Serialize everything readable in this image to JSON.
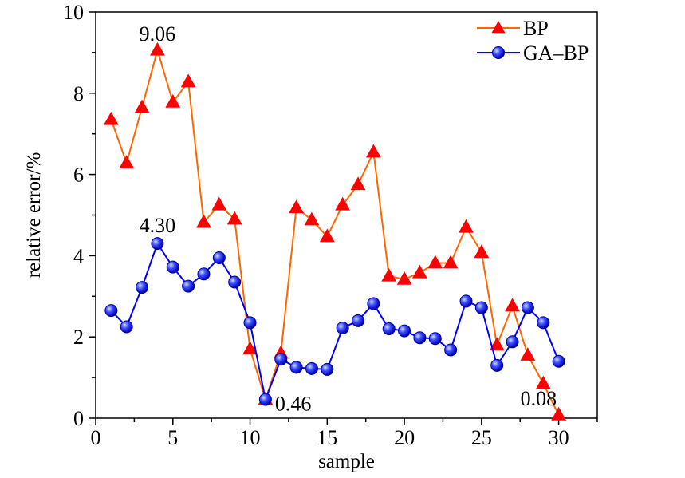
{
  "chart_data": {
    "type": "line",
    "title": "",
    "xlabel": "sample",
    "ylabel": "relative error/%",
    "xlim": [
      0,
      32.5
    ],
    "ylim": [
      0,
      10
    ],
    "x_ticks": [
      0,
      5,
      10,
      15,
      20,
      25,
      30
    ],
    "y_ticks": [
      0,
      2,
      4,
      6,
      8,
      10
    ],
    "grid": false,
    "legend_position": "top-right",
    "x": [
      1,
      2,
      3,
      4,
      5,
      6,
      7,
      8,
      9,
      10,
      11,
      12,
      13,
      14,
      15,
      16,
      17,
      18,
      19,
      20,
      21,
      22,
      23,
      24,
      25,
      26,
      27,
      28,
      29,
      30
    ],
    "series": [
      {
        "name": "BP",
        "color": "#ff0000",
        "line_color": "#ff6600",
        "marker": "triangle",
        "values": [
          7.35,
          6.28,
          7.65,
          9.06,
          7.78,
          8.28,
          4.82,
          5.25,
          4.9,
          1.7,
          0.46,
          1.6,
          5.18,
          4.88,
          4.47,
          5.25,
          5.75,
          6.55,
          3.5,
          3.42,
          3.58,
          3.82,
          3.82,
          4.7,
          4.08,
          1.8,
          2.76,
          1.55,
          0.85,
          0.08
        ]
      },
      {
        "name": "GA–BP",
        "color": "#0000ff",
        "line_color": "#0000ff",
        "marker": "circle",
        "values": [
          2.65,
          2.25,
          3.22,
          4.3,
          3.72,
          3.25,
          3.55,
          3.95,
          3.35,
          2.35,
          0.46,
          1.45,
          1.25,
          1.22,
          1.2,
          2.22,
          2.4,
          2.82,
          2.2,
          2.15,
          1.98,
          1.96,
          1.68,
          2.88,
          2.72,
          1.3,
          1.88,
          2.72,
          2.35,
          1.4
        ]
      }
    ],
    "annotations": [
      {
        "text": "9.06",
        "x": 4,
        "y": 9.06
      },
      {
        "text": "4.30",
        "x": 4,
        "y": 4.3
      },
      {
        "text": "0.46",
        "x": 11,
        "y": 0.46
      },
      {
        "text": "0.08",
        "x": 30,
        "y": 0.08
      }
    ]
  }
}
